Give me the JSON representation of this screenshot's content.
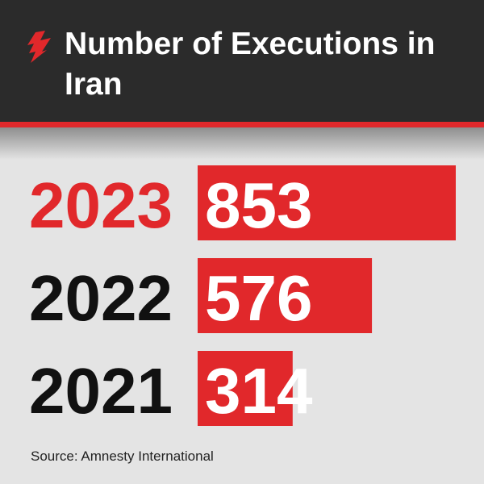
{
  "chart_data": {
    "type": "bar",
    "orientation": "horizontal",
    "title": "Number of Executions in Iran",
    "categories": [
      "2023",
      "2022",
      "2021"
    ],
    "values": [
      853,
      576,
      314
    ],
    "color": "#e1282b",
    "category_colors": [
      "#e1282b",
      "#111111",
      "#111111"
    ],
    "source": "Source: Amnesty International"
  }
}
